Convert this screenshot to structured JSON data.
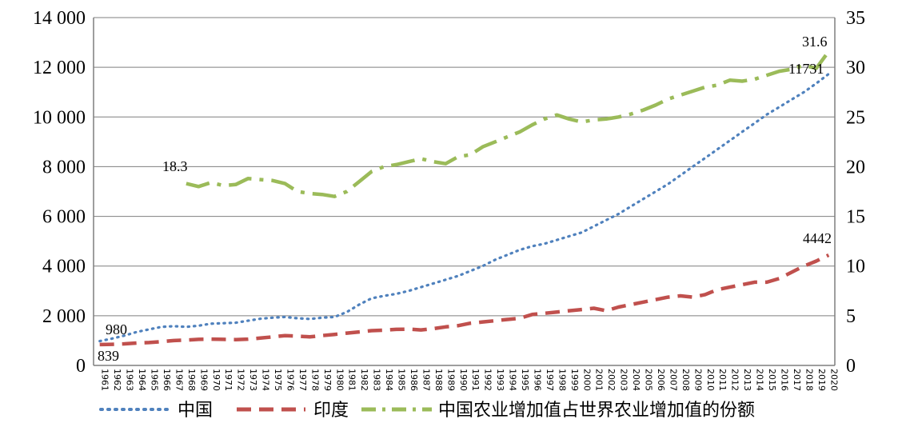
{
  "chart_data": {
    "type": "line",
    "x": [
      1961,
      1962,
      1963,
      1964,
      1965,
      1966,
      1967,
      1968,
      1969,
      1970,
      1971,
      1972,
      1973,
      1974,
      1975,
      1976,
      1977,
      1978,
      1979,
      1980,
      1981,
      1982,
      1983,
      1984,
      1985,
      1986,
      1987,
      1988,
      1989,
      1990,
      1991,
      1992,
      1993,
      1994,
      1995,
      1996,
      1997,
      1998,
      1999,
      2000,
      2001,
      2002,
      2003,
      2004,
      2005,
      2006,
      2007,
      2008,
      2009,
      2010,
      2011,
      2012,
      2013,
      2014,
      2015,
      2016,
      2017,
      2018,
      2019,
      2020
    ],
    "y_left_lim": [
      0,
      14000
    ],
    "y_left_ticks": [
      "0",
      "2 000",
      "4 000",
      "6 000",
      "8 000",
      "10 000",
      "12 000",
      "14 000"
    ],
    "y_right_lim": [
      0,
      35
    ],
    "y_right_ticks": [
      "0",
      "5",
      "10",
      "15",
      "20",
      "25",
      "30",
      "35"
    ],
    "grid": true,
    "legend_position": "bottom",
    "series": [
      {
        "name": "中国",
        "axis": "left",
        "color": "#4f81bd",
        "style": "dotted",
        "values": [
          980,
          1080,
          1200,
          1350,
          1450,
          1550,
          1580,
          1550,
          1600,
          1680,
          1700,
          1720,
          1800,
          1880,
          1920,
          1950,
          1900,
          1870,
          1920,
          1950,
          2150,
          2450,
          2700,
          2800,
          2880,
          3000,
          3150,
          3300,
          3450,
          3600,
          3800,
          4000,
          4250,
          4450,
          4650,
          4800,
          4900,
          5050,
          5200,
          5350,
          5600,
          5850,
          6100,
          6400,
          6700,
          7000,
          7300,
          7650,
          8000,
          8350,
          8700,
          9050,
          9400,
          9750,
          10100,
          10400,
          10700,
          11000,
          11350,
          11731
        ]
      },
      {
        "name": "印度",
        "axis": "left",
        "color": "#c0504d",
        "style": "dashed",
        "values": [
          839,
          850,
          870,
          900,
          920,
          960,
          1000,
          1020,
          1050,
          1060,
          1050,
          1040,
          1060,
          1100,
          1150,
          1200,
          1180,
          1150,
          1200,
          1250,
          1300,
          1350,
          1400,
          1420,
          1450,
          1460,
          1430,
          1480,
          1550,
          1600,
          1700,
          1750,
          1800,
          1850,
          1900,
          2050,
          2100,
          2150,
          2200,
          2250,
          2300,
          2200,
          2350,
          2450,
          2550,
          2650,
          2750,
          2800,
          2750,
          2850,
          3050,
          3150,
          3250,
          3350,
          3350,
          3500,
          3750,
          4000,
          4200,
          4442
        ]
      },
      {
        "name": "中国农业增加值占世界农业增加值的份额",
        "axis": "right",
        "color": "#9bbb59",
        "style": "dash-dot",
        "values": [
          null,
          null,
          null,
          null,
          null,
          null,
          null,
          18.3,
          18.0,
          18.4,
          18.1,
          18.2,
          18.8,
          18.7,
          18.6,
          18.3,
          17.5,
          17.3,
          17.2,
          17.0,
          17.5,
          18.5,
          19.5,
          20.0,
          20.2,
          20.5,
          20.8,
          20.5,
          20.3,
          21.0,
          21.2,
          22.0,
          22.5,
          23.0,
          23.5,
          24.2,
          24.8,
          25.2,
          24.8,
          24.5,
          24.7,
          24.8,
          25.0,
          25.3,
          25.7,
          26.2,
          26.8,
          27.2,
          27.6,
          28.0,
          28.2,
          28.7,
          28.6,
          28.8,
          29.2,
          29.6,
          29.8,
          30.2,
          29.9,
          31.6
        ]
      }
    ],
    "annotations": [
      "980",
      "839",
      "18.3",
      "11731",
      "4442",
      "31.6"
    ]
  }
}
